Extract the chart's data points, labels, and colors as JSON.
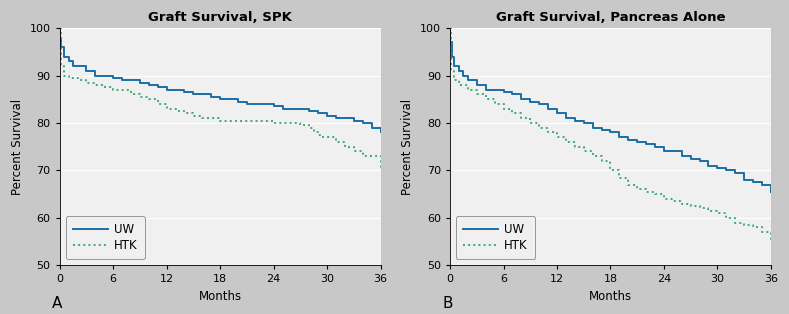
{
  "panel_A": {
    "title": "Graft Survival, SPK",
    "label": "A",
    "UW": {
      "x": [
        0,
        0.05,
        0.2,
        0.5,
        1,
        1.5,
        2,
        3,
        4,
        5,
        6,
        7,
        8,
        9,
        10,
        11,
        12,
        13,
        14,
        15,
        16,
        17,
        18,
        19,
        20,
        21,
        22,
        23,
        24,
        25,
        26,
        27,
        28,
        29,
        30,
        31,
        32,
        33,
        34,
        35,
        36
      ],
      "y": [
        100,
        98,
        96,
        94,
        93,
        92,
        92,
        91,
        90,
        90,
        89.5,
        89,
        89,
        88.5,
        88,
        87.5,
        87,
        87,
        86.5,
        86,
        86,
        85.5,
        85,
        85,
        84.5,
        84,
        84,
        84,
        83.5,
        83,
        83,
        83,
        82.5,
        82,
        81.5,
        81,
        81,
        80.5,
        80,
        79,
        78
      ]
    },
    "HTK": {
      "x": [
        0,
        0.1,
        0.5,
        1,
        2,
        3,
        4,
        5,
        6,
        7,
        8,
        9,
        10,
        11,
        12,
        13,
        14,
        15,
        16,
        17,
        18,
        19,
        20,
        21,
        22,
        23,
        24,
        25,
        26,
        27,
        28,
        28.5,
        29,
        29.5,
        30,
        31,
        32,
        33,
        34,
        35,
        36
      ],
      "y": [
        100,
        92,
        90,
        89.5,
        89,
        88.5,
        88,
        87.5,
        87,
        87,
        86,
        85.5,
        85,
        84,
        83,
        82.5,
        82,
        81.5,
        81,
        81,
        80.5,
        80.5,
        80.5,
        80.5,
        80.5,
        80.5,
        80,
        80,
        80,
        79.5,
        79,
        78,
        77.5,
        77,
        77,
        76,
        75,
        74,
        73,
        73,
        70
      ]
    }
  },
  "panel_B": {
    "title": "Graft Survival, Pancreas Alone",
    "label": "B",
    "UW": {
      "x": [
        0,
        0.05,
        0.2,
        0.5,
        1,
        1.5,
        2,
        3,
        4,
        5,
        6,
        7,
        8,
        9,
        10,
        11,
        12,
        13,
        14,
        15,
        16,
        17,
        18,
        19,
        20,
        21,
        22,
        23,
        24,
        25,
        26,
        27,
        28,
        29,
        30,
        31,
        32,
        33,
        34,
        35,
        36
      ],
      "y": [
        100,
        97,
        94,
        92,
        91,
        90,
        89,
        88,
        87,
        87,
        86.5,
        86,
        85,
        84.5,
        84,
        83,
        82,
        81,
        80.5,
        80,
        79,
        78.5,
        78,
        77,
        76.5,
        76,
        75.5,
        75,
        74,
        74,
        73,
        72.5,
        72,
        71,
        70.5,
        70,
        69.5,
        68,
        67.5,
        67,
        65.5
      ]
    },
    "HTK": {
      "x": [
        0,
        0.1,
        0.5,
        1,
        2,
        3,
        4,
        5,
        6,
        7,
        8,
        9,
        10,
        11,
        12,
        13,
        14,
        15,
        16,
        17,
        18,
        19,
        20,
        21,
        22,
        23,
        24,
        25,
        26,
        27,
        28,
        29,
        30,
        31,
        32,
        33,
        34,
        35,
        36
      ],
      "y": [
        100,
        91,
        89,
        88,
        87,
        86,
        85,
        84,
        83,
        82,
        81,
        80,
        79,
        78,
        77,
        76,
        75,
        74,
        73,
        72,
        70,
        68.5,
        67,
        66,
        65.5,
        65,
        64,
        63.5,
        63,
        62.5,
        62,
        61.5,
        61,
        60,
        59,
        58.5,
        58,
        57,
        55
      ]
    }
  },
  "ylim": [
    50,
    100
  ],
  "xlim": [
    0,
    36
  ],
  "yticks": [
    50,
    60,
    70,
    80,
    90,
    100
  ],
  "xticks": [
    0,
    6,
    12,
    18,
    24,
    30,
    36
  ],
  "ylabel": "Percent Survival",
  "xlabel": "Months",
  "uw_color": "#1a6ea6",
  "htk_color": "#3aaa78",
  "plot_bg_color": "#f0f0f0",
  "fig_bg_color": "#c8c8c8",
  "title_fontsize": 9.5,
  "label_fontsize": 8.5,
  "tick_fontsize": 8,
  "panel_label_fontsize": 11
}
